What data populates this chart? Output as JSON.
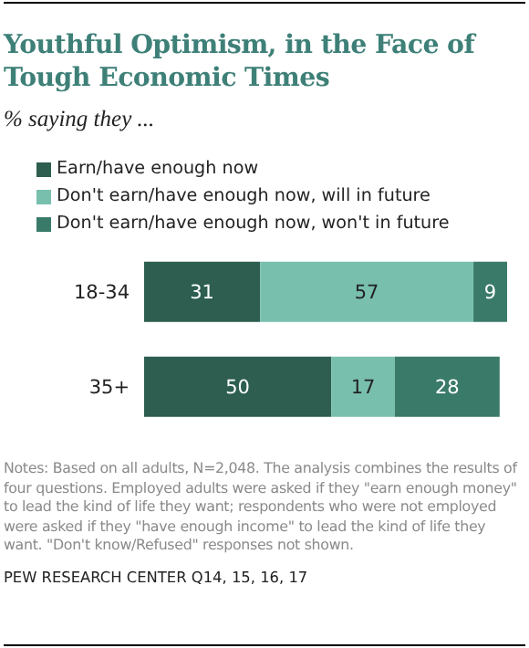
{
  "chart_data": {
    "type": "bar",
    "orientation": "horizontal",
    "stacked": true,
    "title": "Youthful Optimism, in the Face of Tough Economic Times",
    "subtitle": "% saying they ...",
    "categories": [
      "18-34",
      "35+"
    ],
    "series": [
      {
        "name": "Earn/have enough now",
        "color": "#2d5e50",
        "values": [
          31,
          50
        ]
      },
      {
        "name": "Don't earn/have enough now, will in future",
        "color": "#78bfae",
        "values": [
          57,
          17
        ]
      },
      {
        "name": "Don't earn/have enough now, won't in future",
        "color": "#3a7a68",
        "values": [
          9,
          28
        ]
      }
    ],
    "data_labels": true,
    "legend": "top",
    "grid": false,
    "annotations": [
      "Notes: Based on all adults, N=2,048. The analysis combines the results of four questions. Employed adults were asked if they \"earn enough money\" to lead the kind of life they want; respondents who were not employed were asked if they \"have enough income\" to lead the kind of life they want. \"Don't know/Refused\" responses not shown.",
      "PEW RESEARCH CENTER Q14, 15, 16, 17"
    ]
  }
}
